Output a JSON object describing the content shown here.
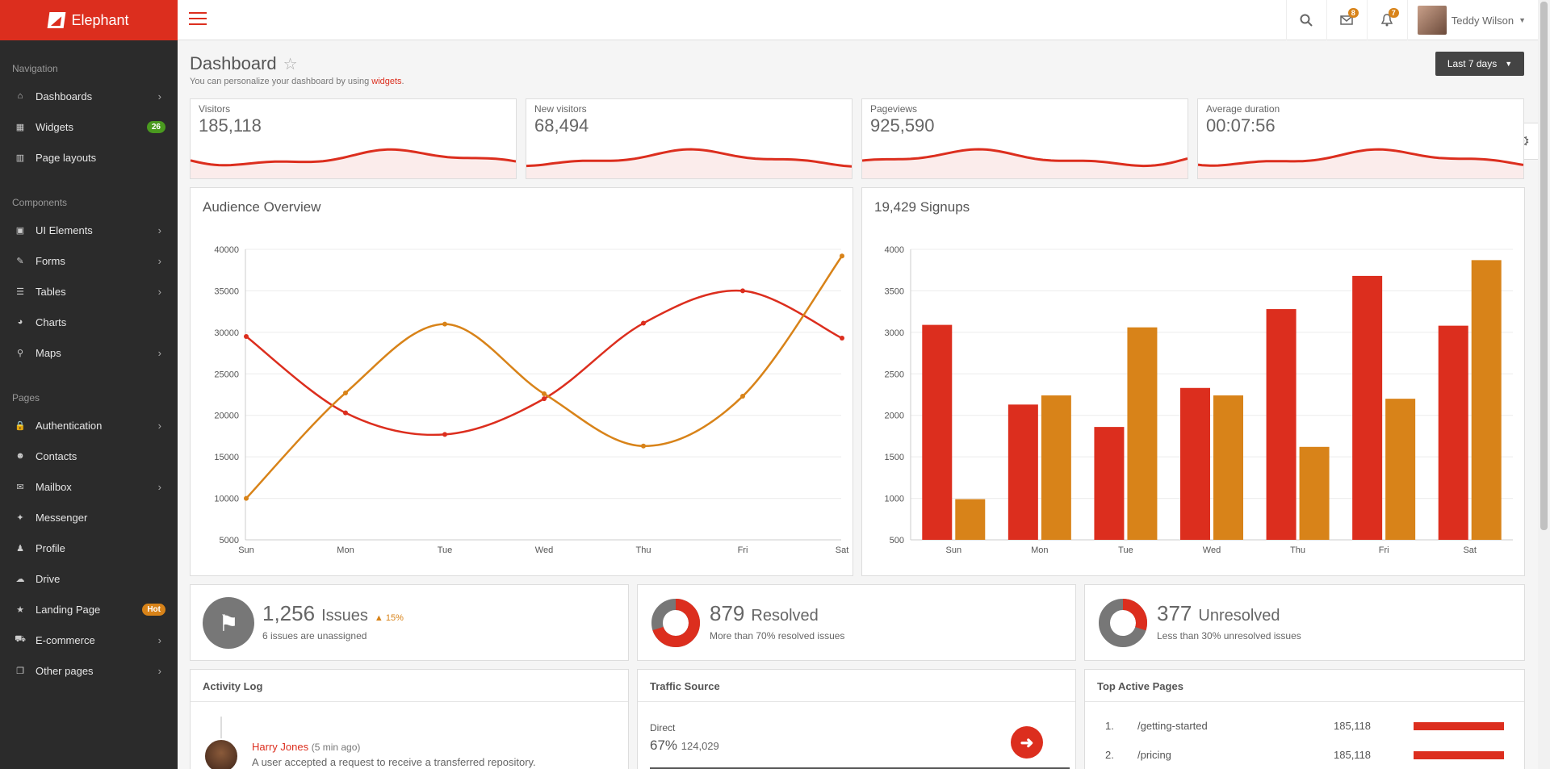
{
  "brand": {
    "name": "Elephant"
  },
  "sidebar": {
    "sections": [
      {
        "title": "Navigation",
        "items": [
          {
            "label": "Dashboards",
            "icon": "home-icon",
            "chevron": true
          },
          {
            "label": "Widgets",
            "icon": "grid-icon",
            "badge": "26",
            "badge_color": "#4a9a1f"
          },
          {
            "label": "Page layouts",
            "icon": "columns-icon"
          }
        ]
      },
      {
        "title": "Components",
        "items": [
          {
            "label": "UI Elements",
            "icon": "briefcase-icon",
            "chevron": true
          },
          {
            "label": "Forms",
            "icon": "edit-icon",
            "chevron": true
          },
          {
            "label": "Tables",
            "icon": "list-icon",
            "chevron": true
          },
          {
            "label": "Charts",
            "icon": "pie-chart-icon"
          },
          {
            "label": "Maps",
            "icon": "map-pin-icon",
            "chevron": true
          }
        ]
      },
      {
        "title": "Pages",
        "items": [
          {
            "label": "Authentication",
            "icon": "lock-icon",
            "chevron": true
          },
          {
            "label": "Contacts",
            "icon": "users-icon"
          },
          {
            "label": "Mailbox",
            "icon": "envelope-icon",
            "chevron": true
          },
          {
            "label": "Messenger",
            "icon": "comments-icon"
          },
          {
            "label": "Profile",
            "icon": "user-icon"
          },
          {
            "label": "Drive",
            "icon": "cloud-icon"
          },
          {
            "label": "Landing Page",
            "icon": "star-icon",
            "badge": "Hot",
            "badge_color": "#d88319"
          },
          {
            "label": "E-commerce",
            "icon": "cart-icon",
            "chevron": true
          },
          {
            "label": "Other pages",
            "icon": "copy-icon",
            "chevron": true
          }
        ]
      }
    ]
  },
  "topbar": {
    "messages_count": "8",
    "notifications_count": "7",
    "user_name": "Teddy Wilson"
  },
  "header": {
    "title": "Dashboard",
    "subtitle_prefix": "You can personalize your dashboard by using ",
    "subtitle_link": "widgets",
    "subtitle_suffix": ".",
    "range_label": "Last 7 days"
  },
  "stats": [
    {
      "label": "Visitors",
      "value": "185,118"
    },
    {
      "label": "New visitors",
      "value": "68,494"
    },
    {
      "label": "Pageviews",
      "value": "925,590"
    },
    {
      "label": "Average duration",
      "value": "00:07:56"
    }
  ],
  "colors": {
    "red": "#dc2e1e",
    "orange": "#d88319",
    "sidebar": "#2b2b2b"
  },
  "chart_data": [
    {
      "type": "line",
      "title": "Audience Overview",
      "categories": [
        "Sun",
        "Mon",
        "Tue",
        "Wed",
        "Thu",
        "Fri",
        "Sat"
      ],
      "ylim": [
        5000,
        40000
      ],
      "yticks": [
        5000,
        10000,
        15000,
        20000,
        25000,
        30000,
        35000,
        40000
      ],
      "series": [
        {
          "color": "#dc2e1e",
          "values": [
            29500,
            20300,
            17700,
            22000,
            31100,
            35000,
            29300
          ]
        },
        {
          "color": "#d88319",
          "values": [
            10000,
            22700,
            31000,
            22600,
            16300,
            22300,
            39200
          ]
        }
      ],
      "grid": true
    },
    {
      "type": "bar",
      "title": "19,429 Signups",
      "categories": [
        "Sun",
        "Mon",
        "Tue",
        "Wed",
        "Thu",
        "Fri",
        "Sat"
      ],
      "ylim": [
        500,
        4000
      ],
      "yticks": [
        500,
        1000,
        1500,
        2000,
        2500,
        3000,
        3500,
        4000
      ],
      "series": [
        {
          "color": "#dc2e1e",
          "values": [
            3090,
            2130,
            1860,
            2330,
            3280,
            3680,
            3080
          ]
        },
        {
          "color": "#d88319",
          "values": [
            990,
            2240,
            3060,
            2240,
            1620,
            2200,
            3870
          ]
        }
      ],
      "grid": true
    }
  ],
  "kpis": {
    "issues": {
      "value": "1,256",
      "word": "Issues",
      "trend": "▲ 15%",
      "sub": "6 issues are unassigned"
    },
    "resolved": {
      "value": "879",
      "word": "Resolved",
      "sub": "More than 70% resolved issues",
      "percent": 70
    },
    "unresolved": {
      "value": "377",
      "word": "Unresolved",
      "sub": "Less than 30% unresolved issues",
      "percent": 30
    }
  },
  "activity": {
    "title": "Activity Log",
    "name": "Harry Jones",
    "when": "(5 min ago)",
    "text": "A user accepted a request to receive a transferred repository."
  },
  "traffic": {
    "title": "Traffic Source",
    "label": "Direct",
    "percent": "67%",
    "count": "124,029"
  },
  "top_pages": {
    "title": "Top Active Pages",
    "rows": [
      {
        "num": "1.",
        "path": "/getting-started",
        "count": "185,118"
      },
      {
        "num": "2.",
        "path": "/pricing",
        "count": "185,118"
      }
    ]
  }
}
